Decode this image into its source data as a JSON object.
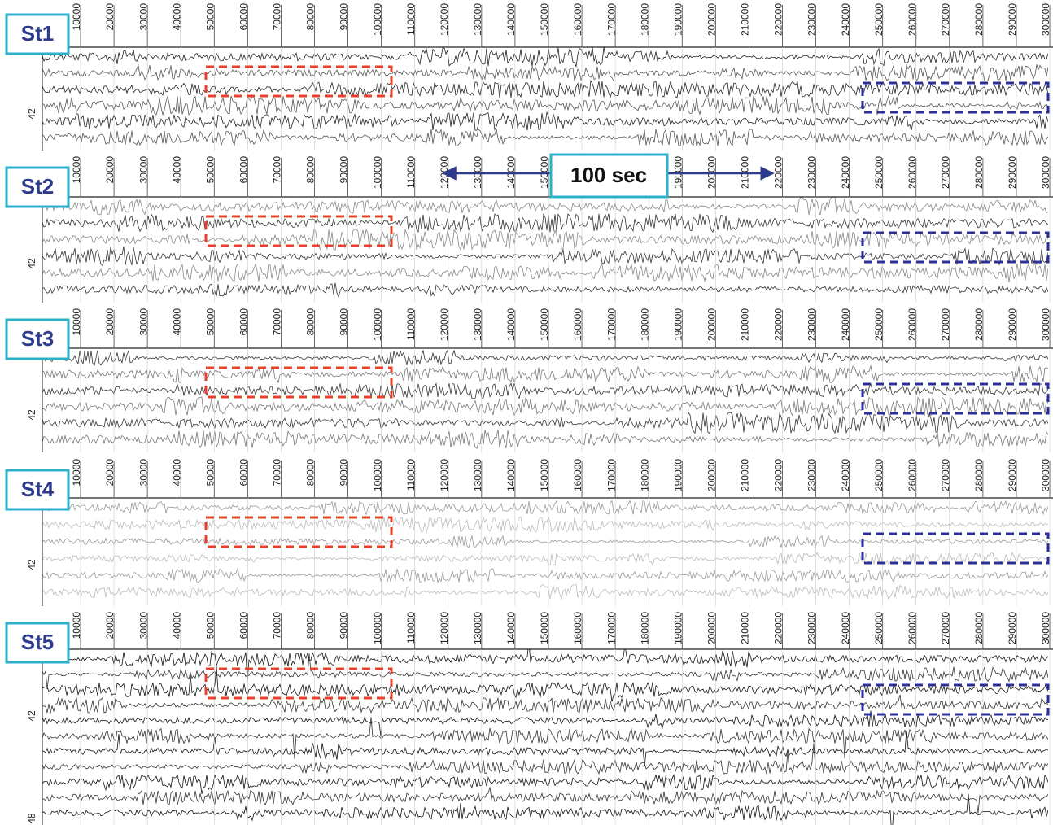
{
  "panels": [
    {
      "label": "St1",
      "trace_labels": [
        "42"
      ]
    },
    {
      "label": "St2",
      "trace_labels": [
        "42"
      ]
    },
    {
      "label": "St3",
      "trace_labels": [
        "42"
      ]
    },
    {
      "label": "St4",
      "trace_labels": [
        "42"
      ]
    },
    {
      "label": "St5",
      "trace_labels": [
        "42",
        "48"
      ]
    }
  ],
  "time_ticks": [
    10000,
    20000,
    30000,
    40000,
    50000,
    60000,
    70000,
    80000,
    90000,
    100000,
    110000,
    120000,
    130000,
    140000,
    150000,
    160000,
    170000,
    180000,
    190000,
    200000,
    210000,
    220000,
    230000,
    240000,
    250000,
    260000,
    270000,
    280000,
    290000,
    300000
  ],
  "annotation": "100 sec"
}
